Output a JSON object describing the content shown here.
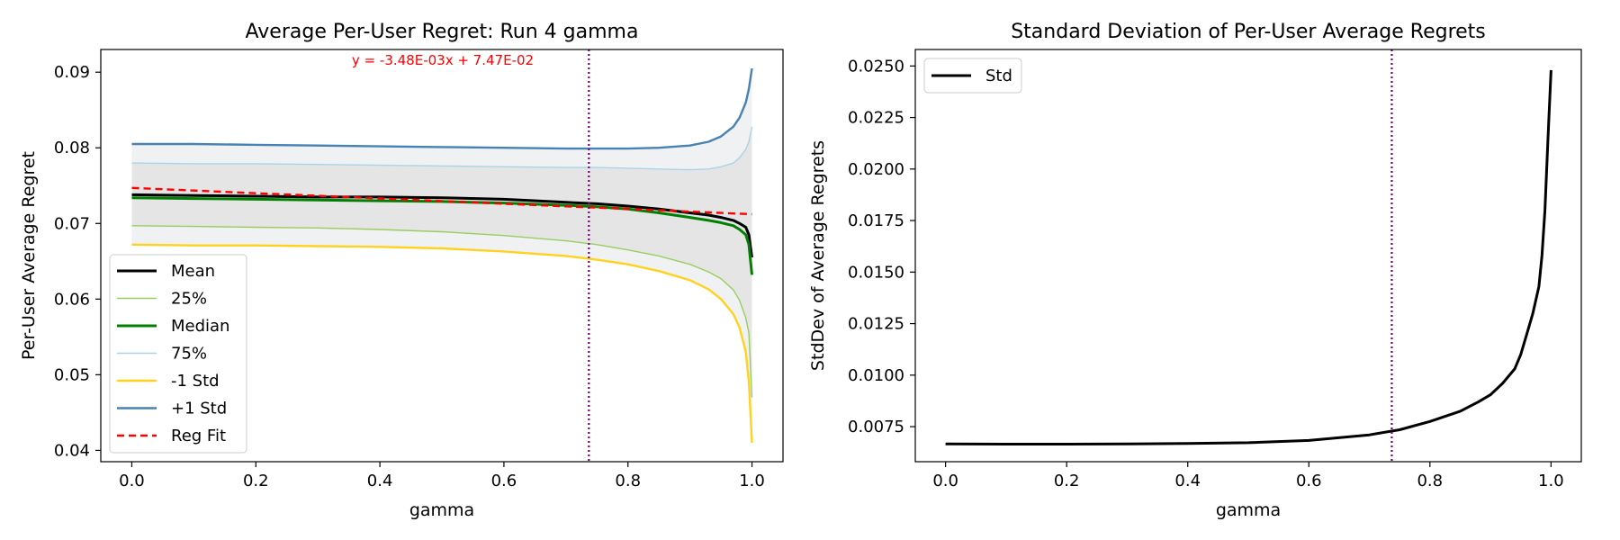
{
  "colors": {
    "mean": "#000000",
    "p25": "#9acd60",
    "median": "#008000",
    "p75": "#a8d4e8",
    "minus_std": "#ffd21f",
    "plus_std": "#4682b4",
    "reg_fit": "#ff0000",
    "vline": "#800080",
    "band_outer": "#f0f1f3",
    "band_inner": "#e5e5e5"
  },
  "chart_data": [
    {
      "type": "line",
      "title": "Average Per-User Regret: Run 4 gamma",
      "xlabel": "gamma",
      "ylabel": "Per-User Average Regret",
      "xlim": [
        -0.05,
        1.05
      ],
      "ylim": [
        0.0385,
        0.093
      ],
      "xticks": [
        0.0,
        0.2,
        0.4,
        0.6,
        0.8,
        1.0
      ],
      "xtick_labels": [
        "0.0",
        "0.2",
        "0.4",
        "0.6",
        "0.8",
        "1.0"
      ],
      "yticks": [
        0.04,
        0.05,
        0.06,
        0.07,
        0.08,
        0.09
      ],
      "ytick_labels": [
        "0.04",
        "0.05",
        "0.06",
        "0.07",
        "0.08",
        "0.09"
      ],
      "grid": false,
      "legend_position": "lower-left",
      "vline_x": 0.737,
      "annotation": "y = -3.48E-03x + 7.47E-02",
      "x": [
        0.0,
        0.1,
        0.2,
        0.3,
        0.4,
        0.5,
        0.6,
        0.7,
        0.75,
        0.8,
        0.85,
        0.9,
        0.93,
        0.95,
        0.97,
        0.98,
        0.99,
        0.995,
        1.0
      ],
      "series": [
        {
          "name": "Mean",
          "key": "mean",
          "width": 3,
          "values": [
            0.0738,
            0.0737,
            0.0736,
            0.0735,
            0.0735,
            0.0734,
            0.0732,
            0.0728,
            0.0726,
            0.0723,
            0.0719,
            0.0714,
            0.0711,
            0.0708,
            0.0704,
            0.07,
            0.0695,
            0.0685,
            0.0655
          ]
        },
        {
          "name": "25%",
          "key": "p25",
          "width": 1.4,
          "values": [
            0.0697,
            0.0696,
            0.0695,
            0.0694,
            0.0692,
            0.0689,
            0.0684,
            0.0677,
            0.0672,
            0.0665,
            0.0657,
            0.0646,
            0.0636,
            0.0627,
            0.0612,
            0.0598,
            0.0575,
            0.0555,
            0.047
          ]
        },
        {
          "name": "Median",
          "key": "median",
          "width": 3,
          "values": [
            0.0734,
            0.0733,
            0.0732,
            0.0731,
            0.073,
            0.0729,
            0.0727,
            0.0724,
            0.0722,
            0.0719,
            0.0714,
            0.0708,
            0.0704,
            0.0701,
            0.0697,
            0.0692,
            0.0685,
            0.0672,
            0.0632
          ]
        },
        {
          "name": "75%",
          "key": "p75",
          "width": 1.4,
          "values": [
            0.078,
            0.0779,
            0.0779,
            0.0778,
            0.0777,
            0.0776,
            0.0775,
            0.0774,
            0.0774,
            0.0773,
            0.0772,
            0.0771,
            0.0772,
            0.0775,
            0.078,
            0.0787,
            0.0798,
            0.0808,
            0.0828
          ]
        },
        {
          "name": "-1 Std",
          "key": "minus_std",
          "width": 2.4,
          "values": [
            0.0672,
            0.0671,
            0.0671,
            0.067,
            0.0669,
            0.0667,
            0.0663,
            0.0657,
            0.0652,
            0.0646,
            0.0637,
            0.0625,
            0.0613,
            0.06,
            0.058,
            0.0562,
            0.053,
            0.049,
            0.041
          ]
        },
        {
          "name": "+1 Std",
          "key": "plus_std",
          "width": 2.4,
          "values": [
            0.0805,
            0.0805,
            0.0804,
            0.0803,
            0.0802,
            0.0801,
            0.08,
            0.0799,
            0.0799,
            0.0799,
            0.08,
            0.0803,
            0.0808,
            0.0815,
            0.0828,
            0.084,
            0.086,
            0.0878,
            0.0905
          ]
        },
        {
          "name": "Reg Fit",
          "key": "reg_fit",
          "width": 2.4,
          "dashed": true,
          "values": [
            0.0747,
            0.07435,
            0.074,
            0.07366,
            0.07331,
            0.07296,
            0.07261,
            0.07226,
            0.07209,
            0.07192,
            0.07174,
            0.07157,
            0.07146,
            0.07139,
            0.07132,
            0.07129,
            0.07126,
            0.07124,
            0.07122
          ]
        }
      ]
    },
    {
      "type": "line",
      "title": "Standard Deviation of Per-User Average Regrets",
      "xlabel": "gamma",
      "ylabel": "StdDev of Average Regrets",
      "xlim": [
        -0.05,
        1.05
      ],
      "ylim": [
        0.0058,
        0.0258
      ],
      "xticks": [
        0.0,
        0.2,
        0.4,
        0.6,
        0.8,
        1.0
      ],
      "xtick_labels": [
        "0.0",
        "0.2",
        "0.4",
        "0.6",
        "0.8",
        "1.0"
      ],
      "yticks": [
        0.0075,
        0.01,
        0.0125,
        0.015,
        0.0175,
        0.02,
        0.0225,
        0.025
      ],
      "ytick_labels": [
        "0.0075",
        "0.0100",
        "0.0125",
        "0.0150",
        "0.0175",
        "0.0200",
        "0.0225",
        "0.0250"
      ],
      "grid": false,
      "legend_position": "upper-left",
      "vline_x": 0.737,
      "x": [
        0.0,
        0.1,
        0.2,
        0.3,
        0.4,
        0.5,
        0.6,
        0.7,
        0.75,
        0.8,
        0.85,
        0.88,
        0.9,
        0.92,
        0.94,
        0.95,
        0.96,
        0.97,
        0.98,
        0.985,
        0.99,
        0.995,
        1.0
      ],
      "series": [
        {
          "name": "Std",
          "key": "mean",
          "width": 3,
          "values": [
            0.00666,
            0.00665,
            0.00665,
            0.00666,
            0.00668,
            0.00672,
            0.00683,
            0.0071,
            0.00735,
            0.00775,
            0.00825,
            0.0087,
            0.00905,
            0.0096,
            0.0103,
            0.011,
            0.012,
            0.013,
            0.0143,
            0.0158,
            0.018,
            0.0215,
            0.0248
          ]
        }
      ]
    }
  ]
}
